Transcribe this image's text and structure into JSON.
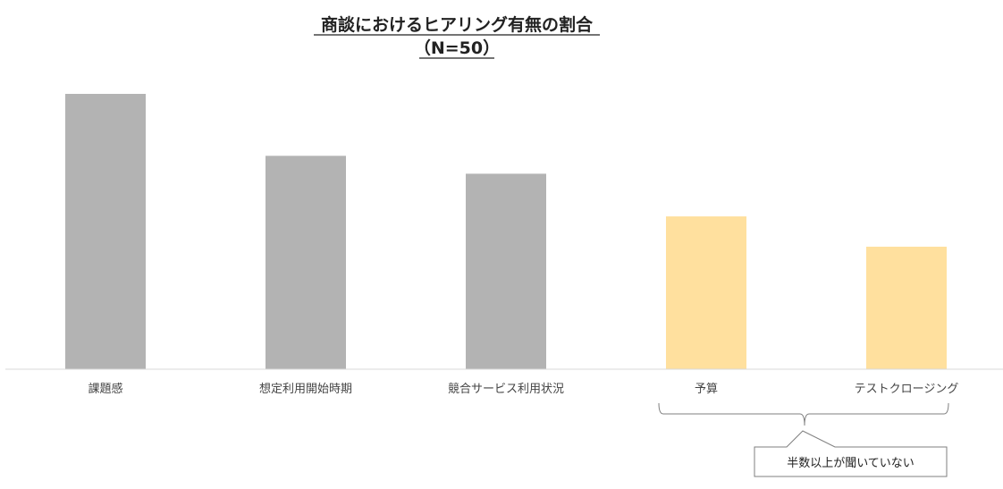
{
  "chart_data": {
    "type": "bar",
    "title": "商談におけるヒアリング有無の割合",
    "subtitle": "（N=50）",
    "categories": [
      "課題感",
      "想定利用開始時期",
      "競合サービス利用状況",
      "予算",
      "テストクロージング"
    ],
    "values": [
      100,
      77.5,
      71,
      55.5,
      44.5
    ],
    "ylim": [
      0,
      100
    ],
    "grid": false,
    "legend": "none",
    "colors": {
      "default_bar": "#b3b3b3",
      "highlight_bar": "#ffe09e",
      "axis": "#d9d9d9",
      "bracket": "#7f7f7f"
    },
    "highlight_categories": [
      "予算",
      "テストクロージング"
    ],
    "annotation": {
      "text": "半数以上が聞いていない",
      "target_categories": [
        "予算",
        "テストクロージング"
      ]
    }
  }
}
